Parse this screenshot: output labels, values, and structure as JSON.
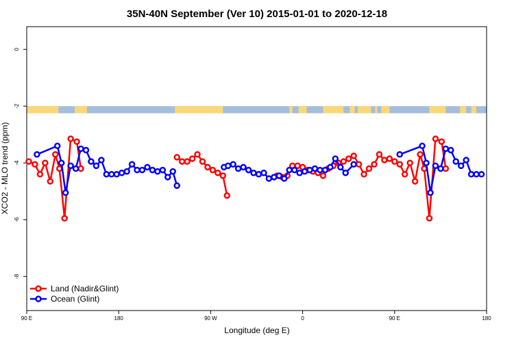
{
  "chart_data": {
    "type": "line",
    "title": "35N-40N September (Ver 10)   2015-01-01 to 2020-12-18",
    "xlabel": "Longitude (deg E)",
    "ylabel": "XCO2 - MLO trend (ppm)",
    "x_axis": {
      "range": [
        90,
        540
      ],
      "ticks": [
        {
          "value": 90,
          "label": "90 E"
        },
        {
          "value": 180,
          "label": "180"
        },
        {
          "value": 270,
          "label": "90 W"
        },
        {
          "value": 360,
          "label": "0"
        },
        {
          "value": 450,
          "label": "90 E"
        },
        {
          "value": 540,
          "label": "180"
        }
      ]
    },
    "y_axis": {
      "range": [
        -9.2,
        0.8
      ],
      "ticks": [
        {
          "value": 0,
          "label": "0"
        },
        {
          "value": -2,
          "label": "-2"
        },
        {
          "value": -4,
          "label": "-4"
        },
        {
          "value": -6,
          "label": "-6"
        },
        {
          "value": -8,
          "label": "-8"
        }
      ]
    },
    "grid": false,
    "legend_position": "bottom-left",
    "surface_strip": {
      "y_range": [
        -2.25,
        -2.0
      ],
      "ocean_color": "#a4bedd",
      "land_color": "#fbd877",
      "land_segments": [
        [
          90,
          121
        ],
        [
          137,
          149
        ],
        [
          235,
          282
        ],
        [
          347,
          350
        ],
        [
          356,
          364
        ],
        [
          380,
          400
        ],
        [
          406,
          411
        ],
        [
          414,
          427
        ],
        [
          431,
          433
        ],
        [
          437,
          445
        ],
        [
          484,
          500
        ],
        [
          514,
          520
        ],
        [
          525,
          530
        ]
      ]
    },
    "series": [
      {
        "name": "Land (Nadir&Glint)",
        "color": "#ff0000",
        "segments": [
          [
            [
              92,
              -3.95
            ],
            [
              98,
              -4.05
            ],
            [
              103,
              -4.4
            ],
            [
              108,
              -4.0
            ],
            [
              113,
              -4.65
            ],
            [
              118,
              -3.7
            ],
            [
              122,
              -4.2
            ],
            [
              127,
              -5.95
            ],
            [
              133,
              -3.15
            ],
            [
              139,
              -3.25
            ],
            [
              143,
              -4.2
            ]
          ],
          [
            [
              237,
              -3.8
            ],
            [
              242,
              -3.95
            ],
            [
              247,
              -3.95
            ],
            [
              252,
              -3.85
            ],
            [
              257,
              -3.7
            ],
            [
              262,
              -3.95
            ],
            [
              267,
              -4.15
            ],
            [
              272,
              -4.25
            ],
            [
              277,
              -4.35
            ],
            [
              282,
              -4.45
            ],
            [
              286,
              -5.15
            ]
          ],
          [
            [
              335,
              -4.45
            ],
            [
              340,
              -4.5
            ],
            [
              345,
              -4.45
            ],
            [
              350,
              -4.1
            ],
            [
              355,
              -4.1
            ],
            [
              360,
              -4.15
            ],
            [
              365,
              -4.25
            ],
            [
              370,
              -4.3
            ],
            [
              375,
              -4.35
            ],
            [
              380,
              -4.45
            ],
            [
              385,
              -4.2
            ],
            [
              390,
              -4.1
            ],
            [
              395,
              -4.0
            ],
            [
              400,
              -3.95
            ],
            [
              405,
              -3.85
            ],
            [
              410,
              -3.75
            ],
            [
              415,
              -4.05
            ],
            [
              420,
              -4.4
            ],
            [
              425,
              -4.2
            ],
            [
              430,
              -4.05
            ],
            [
              435,
              -3.7
            ],
            [
              440,
              -3.9
            ],
            [
              445,
              -3.85
            ],
            [
              450,
              -3.95
            ],
            [
              455,
              -4.05
            ],
            [
              460,
              -4.4
            ],
            [
              465,
              -4.0
            ],
            [
              470,
              -4.65
            ],
            [
              475,
              -3.7
            ],
            [
              479,
              -4.2
            ],
            [
              484,
              -5.95
            ],
            [
              490,
              -3.15
            ],
            [
              496,
              -3.25
            ],
            [
              500,
              -4.2
            ]
          ]
        ]
      },
      {
        "name": "Ocean (Glint)",
        "color": "#0000ff",
        "segments": [
          [
            [
              100,
              -3.7
            ],
            [
              120,
              -3.4
            ],
            [
              124,
              -4.0
            ],
            [
              128,
              -5.05
            ],
            [
              133,
              -4.1
            ],
            [
              138,
              -4.2
            ],
            [
              143,
              -3.5
            ],
            [
              148,
              -3.55
            ],
            [
              153,
              -3.95
            ],
            [
              158,
              -4.1
            ],
            [
              163,
              -3.9
            ],
            [
              168,
              -4.4
            ],
            [
              173,
              -4.4
            ],
            [
              178,
              -4.4
            ],
            [
              183,
              -4.35
            ],
            [
              188,
              -4.3
            ],
            [
              193,
              -4.05
            ],
            [
              198,
              -4.25
            ],
            [
              203,
              -4.25
            ],
            [
              208,
              -4.15
            ],
            [
              213,
              -4.25
            ],
            [
              218,
              -4.3
            ],
            [
              223,
              -4.25
            ],
            [
              228,
              -4.5
            ],
            [
              233,
              -4.3
            ],
            [
              237,
              -4.8
            ]
          ],
          [
            [
              283,
              -4.15
            ],
            [
              287,
              -4.1
            ],
            [
              292,
              -4.05
            ],
            [
              297,
              -4.2
            ],
            [
              302,
              -4.15
            ],
            [
              307,
              -4.25
            ],
            [
              312,
              -4.35
            ],
            [
              317,
              -4.4
            ],
            [
              322,
              -4.35
            ],
            [
              327,
              -4.55
            ],
            [
              332,
              -4.5
            ],
            [
              337,
              -4.45
            ],
            [
              342,
              -4.55
            ],
            [
              347,
              -4.25
            ],
            [
              352,
              -4.25
            ],
            [
              357,
              -4.35
            ],
            [
              362,
              -4.3
            ],
            [
              367,
              -4.25
            ],
            [
              372,
              -4.2
            ],
            [
              377,
              -4.25
            ],
            [
              382,
              -4.25
            ],
            [
              387,
              -4.15
            ],
            [
              392,
              -3.85
            ],
            [
              397,
              -4.15
            ],
            [
              402,
              -4.35
            ],
            [
              410,
              -4.05
            ]
          ],
          [
            [
              455,
              -3.7
            ],
            [
              477,
              -3.4
            ],
            [
              481,
              -4.0
            ],
            [
              485,
              -5.05
            ],
            [
              490,
              -4.1
            ],
            [
              495,
              -4.2
            ],
            [
              500,
              -3.5
            ],
            [
              505,
              -3.55
            ],
            [
              510,
              -3.95
            ],
            [
              515,
              -4.1
            ],
            [
              520,
              -3.9
            ],
            [
              525,
              -4.4
            ],
            [
              530,
              -4.4
            ],
            [
              535,
              -4.4
            ]
          ]
        ]
      }
    ]
  }
}
